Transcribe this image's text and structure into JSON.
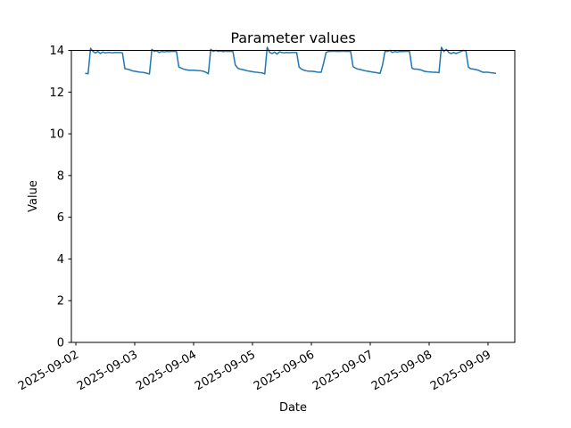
{
  "figure": {
    "background_color": "#ffffff",
    "frame_color": "#000000"
  },
  "chart_data": {
    "type": "line",
    "title": "Parameter values",
    "xlabel": "Date",
    "ylabel": "Value",
    "grid": false,
    "legend": null,
    "ylim": [
      0,
      14
    ],
    "y_ticks": [
      0,
      2,
      4,
      6,
      8,
      10,
      12,
      14
    ],
    "y_tick_labels": [
      "0",
      "2",
      "4",
      "6",
      "8",
      "10",
      "12",
      "14"
    ],
    "x_tick_labels": [
      "2025-09-02",
      "2025-09-03",
      "2025-09-04",
      "2025-09-05",
      "2025-09-06",
      "2025-09-07",
      "2025-09-08",
      "2025-09-09"
    ],
    "x_tick_rotation_deg": 30,
    "series": [
      {
        "name": "parameter-values",
        "color": "#1f77b4",
        "line_width": 1.5,
        "x_start": "2025-09-02T04:00:00",
        "x_interval_hours": 1,
        "values": [
          12.9,
          12.88,
          14.1,
          13.95,
          13.87,
          13.95,
          13.85,
          13.92,
          13.88,
          13.9,
          13.9,
          13.88,
          13.9,
          13.9,
          13.9,
          13.88,
          13.12,
          13.1,
          13.07,
          13.02,
          13.0,
          12.98,
          12.96,
          12.95,
          12.93,
          12.9,
          12.87,
          14.05,
          13.95,
          13.98,
          13.9,
          13.95,
          13.93,
          13.95,
          13.94,
          13.95,
          13.95,
          13.95,
          13.2,
          13.15,
          13.1,
          13.07,
          13.05,
          13.05,
          13.05,
          13.04,
          13.03,
          13.02,
          13.0,
          12.95,
          12.88,
          14.05,
          13.95,
          14.0,
          13.95,
          13.97,
          13.94,
          13.96,
          13.95,
          13.95,
          13.95,
          13.3,
          13.15,
          13.1,
          13.08,
          13.05,
          13.02,
          13.0,
          12.98,
          12.96,
          12.95,
          12.93,
          12.92,
          12.87,
          14.15,
          13.9,
          13.85,
          13.92,
          13.82,
          13.93,
          13.9,
          13.88,
          13.9,
          13.89,
          13.9,
          13.9,
          13.9,
          13.2,
          13.1,
          13.05,
          13.02,
          13.0,
          13.0,
          12.99,
          12.97,
          12.95,
          12.95,
          13.4,
          13.9,
          13.95,
          13.95,
          13.96,
          13.95,
          13.95,
          13.95,
          13.96,
          13.95,
          13.95,
          13.95,
          13.22,
          13.15,
          13.1,
          13.08,
          13.05,
          13.02,
          13.0,
          12.98,
          12.96,
          12.94,
          12.92,
          12.9,
          13.3,
          13.95,
          13.95,
          14.0,
          13.9,
          13.95,
          13.92,
          13.95,
          13.94,
          13.95,
          13.95,
          13.95,
          13.15,
          13.1,
          13.1,
          13.08,
          13.05,
          13.0,
          12.98,
          12.97,
          12.96,
          12.95,
          12.95,
          12.93,
          14.15,
          13.95,
          14.05,
          13.9,
          13.85,
          13.9,
          13.85,
          13.9,
          13.95,
          14.0,
          13.97,
          13.2,
          13.12,
          13.1,
          13.08,
          13.05,
          13.0,
          12.95,
          12.95,
          12.95,
          12.93,
          12.92,
          12.9
        ]
      }
    ]
  }
}
